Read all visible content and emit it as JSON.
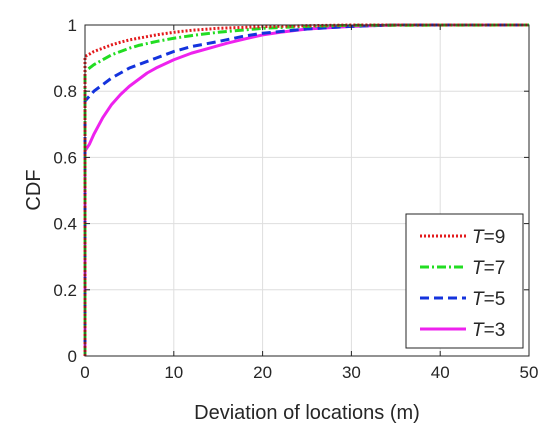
{
  "chart_data": {
    "type": "line",
    "title": "",
    "xlabel": "Deviation of locations (m)",
    "ylabel": "CDF",
    "xlim": [
      0,
      50
    ],
    "ylim": [
      0,
      1
    ],
    "xticks": [
      0,
      10,
      20,
      30,
      40,
      50
    ],
    "xtick_labels": [
      "0",
      "10",
      "20",
      "30",
      "40",
      "50"
    ],
    "yticks": [
      0,
      0.2,
      0.4,
      0.6,
      0.8,
      1
    ],
    "ytick_labels": [
      "0",
      "0.2",
      "0.4",
      "0.6",
      "0.8",
      "1"
    ],
    "grid": true,
    "legend_position": "bottom-right",
    "series": [
      {
        "name": "T=9",
        "legend_var": "T",
        "legend_value": "=9",
        "color": "#e31a1c",
        "style": "dotted",
        "x": [
          0,
          0,
          0.5,
          1,
          2,
          3,
          4,
          5,
          6,
          8,
          10,
          12,
          15,
          20,
          25,
          30,
          50
        ],
        "y": [
          0,
          0.905,
          0.912,
          0.92,
          0.93,
          0.94,
          0.948,
          0.955,
          0.96,
          0.97,
          0.978,
          0.984,
          0.99,
          0.995,
          0.998,
          1.0,
          1.0
        ]
      },
      {
        "name": "T=7",
        "legend_var": "T",
        "legend_value": "=7",
        "color": "#22dd22",
        "style": "dashdot",
        "x": [
          0,
          0,
          0.5,
          1,
          2,
          3,
          4,
          5,
          6,
          8,
          10,
          12,
          15,
          20,
          25,
          30,
          50
        ],
        "y": [
          0,
          0.86,
          0.87,
          0.88,
          0.895,
          0.91,
          0.92,
          0.93,
          0.938,
          0.95,
          0.96,
          0.968,
          0.978,
          0.99,
          0.996,
          0.999,
          1.0
        ]
      },
      {
        "name": "T=5",
        "legend_var": "T",
        "legend_value": "=5",
        "color": "#1433dd",
        "style": "dashed",
        "x": [
          0,
          0,
          0.5,
          1,
          2,
          3,
          4,
          5,
          6,
          8,
          10,
          12,
          15,
          18,
          20,
          25,
          30,
          35,
          50
        ],
        "y": [
          0,
          0.77,
          0.785,
          0.8,
          0.82,
          0.84,
          0.855,
          0.87,
          0.88,
          0.9,
          0.92,
          0.935,
          0.95,
          0.967,
          0.975,
          0.988,
          0.996,
          1.0,
          1.0
        ]
      },
      {
        "name": "T=3",
        "legend_var": "T",
        "legend_value": "=3",
        "color": "#ee22ee",
        "style": "solid",
        "x": [
          0,
          0,
          0.5,
          1,
          2,
          3,
          4,
          5,
          6,
          7,
          8,
          10,
          12,
          14,
          16,
          18,
          20,
          22,
          25,
          30,
          35,
          50
        ],
        "y": [
          0,
          0.62,
          0.64,
          0.67,
          0.72,
          0.76,
          0.79,
          0.815,
          0.835,
          0.855,
          0.87,
          0.895,
          0.915,
          0.93,
          0.945,
          0.958,
          0.97,
          0.978,
          0.988,
          0.996,
          1.0,
          1.0
        ]
      }
    ]
  }
}
